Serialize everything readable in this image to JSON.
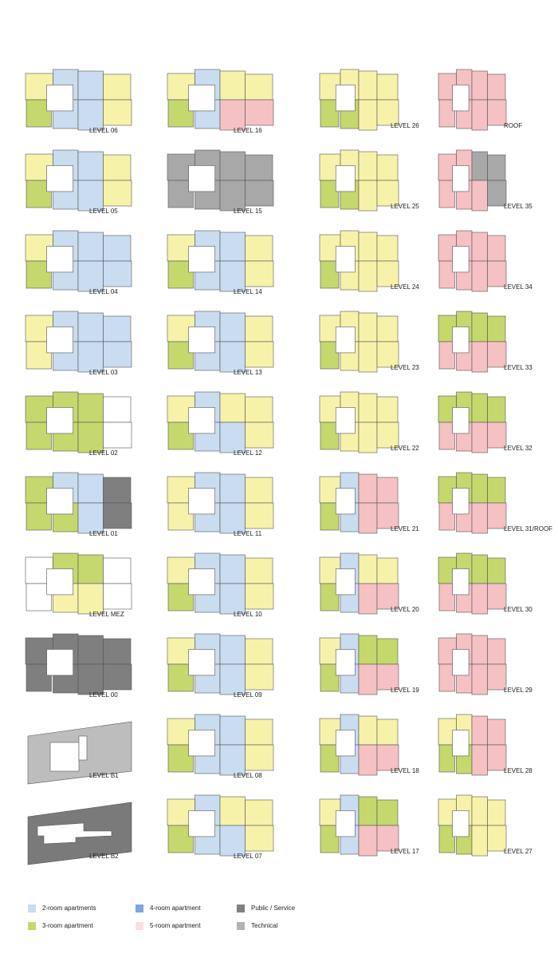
{
  "columns": [
    [
      "LEVEL 06",
      "LEVEL 05",
      "LEVEL 04",
      "LEVEL 03",
      "LEVEL 02",
      "LEVEL 01",
      "LEVEL MEZ",
      "LEVEL 00",
      "LEVEL B1",
      "LEVEL B2"
    ],
    [
      "LEVEL 16",
      "LEVEL 15",
      "LEVEL 14",
      "LEVEL 13",
      "LEVEL 12",
      "LEVEL 11",
      "LEVEL 10",
      "LEVEL 09",
      "LEVEL 08",
      "LEVEL 07"
    ],
    [
      "LEVEL 26",
      "LEVEL 25",
      "LEVEL 24",
      "LEVEL 23",
      "LEVEL 22",
      "LEVEL 21",
      "LEVEL 20",
      "LEVEL 19",
      "LEVEL 18",
      "LEVEL 17"
    ],
    [
      "ROOF",
      "LEVEL 35",
      "LEVEL 34",
      "LEVEL 33",
      "LEVEL 32",
      "LEVEL 31/ROOF",
      "LEVEL 30",
      "LEVEL 29",
      "LEVEL 28",
      "LEVEL 27"
    ]
  ],
  "legend": [
    "2-room apartments",
    "3-room apartment",
    "4-room apartment",
    "5-room apartment",
    "Public / Service",
    "Technical"
  ]
}
